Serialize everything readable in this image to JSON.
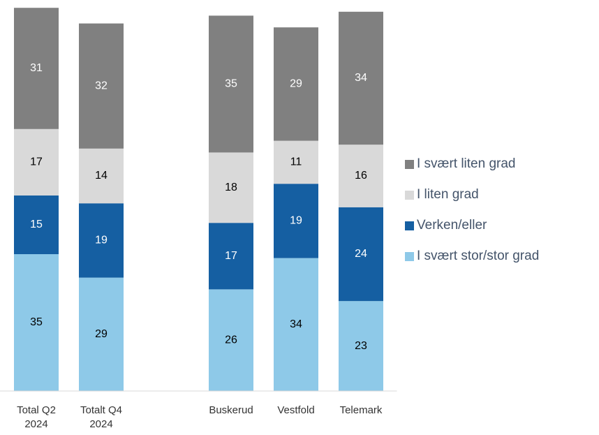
{
  "chart_data": {
    "type": "stacked_bar",
    "categories": [
      "Total Q2 2024",
      "Totalt Q4 2024",
      null,
      "Buskerud",
      "Vestfold",
      "Telemark"
    ],
    "series": [
      {
        "name": "I svært stor/stor grad",
        "color": "#8ec9e8",
        "label_color": "#000000",
        "values": [
          35,
          29,
          null,
          26,
          34,
          23
        ]
      },
      {
        "name": "Verken/eller",
        "color": "#155fa2",
        "label_color": "#ffffff",
        "values": [
          15,
          19,
          null,
          17,
          19,
          24
        ]
      },
      {
        "name": "I liten grad",
        "color": "#d9d9d9",
        "label_color": "#000000",
        "values": [
          17,
          14,
          null,
          18,
          11,
          16
        ]
      },
      {
        "name": "I svært liten grad",
        "color": "#808080",
        "label_color": "#ffffff",
        "values": [
          31,
          32,
          null,
          35,
          29,
          34
        ]
      }
    ],
    "ylim": [
      0,
      100
    ],
    "legend": "right"
  }
}
